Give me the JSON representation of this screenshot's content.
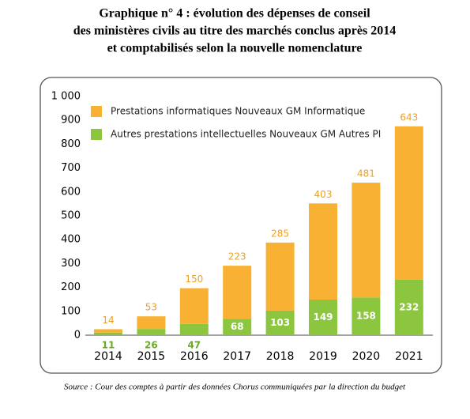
{
  "chart_data": {
    "type": "stacked-bar",
    "title": [
      "Graphique n° 4 : évolution des dépenses de conseil",
      "des ministères civils au titre des marchés conclus après 2014",
      "et comptabilisés selon la nouvelle nomenclature"
    ],
    "categories": [
      "2014",
      "2015",
      "2016",
      "2017",
      "2018",
      "2019",
      "2020",
      "2021"
    ],
    "series": [
      {
        "name": "Autres prestations intellectuelles Nouveaux GM Autres PI",
        "color": "#8cc63f",
        "values": [
          11,
          26,
          47,
          68,
          103,
          149,
          158,
          232
        ]
      },
      {
        "name": "Prestations informatiques Nouveaux GM Informatique",
        "color": "#f8b133",
        "values": [
          14,
          53,
          150,
          223,
          285,
          403,
          481,
          643
        ]
      }
    ],
    "ylim": [
      0,
      1000
    ],
    "yticks": [
      0,
      100,
      200,
      300,
      400,
      500,
      600,
      700,
      800,
      900,
      {
        "value": 1000,
        "label": "1 000"
      }
    ],
    "source": "Source : Cour des comptes à partir des données Chorus communiquées par la direction du budget"
  }
}
